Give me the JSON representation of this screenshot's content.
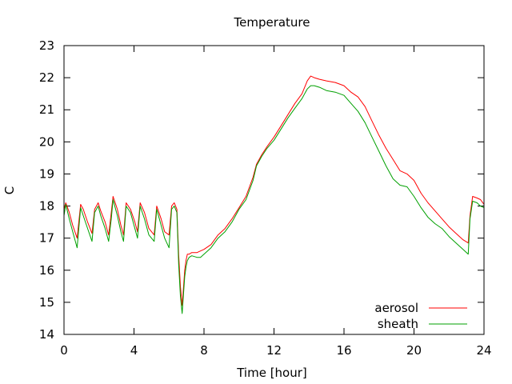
{
  "chart_data": {
    "type": "line",
    "title": "Temperature",
    "xlabel": "Time [hour]",
    "ylabel": "C",
    "xlim": [
      0,
      24
    ],
    "ylim": [
      14,
      23
    ],
    "xticks": [
      0,
      4,
      8,
      12,
      16,
      20,
      24
    ],
    "yticks": [
      14,
      15,
      16,
      17,
      18,
      19,
      20,
      21,
      22,
      23
    ],
    "grid": false,
    "legend_position": "bottom-right",
    "series": [
      {
        "name": "aerosol",
        "color": "#ff0000",
        "x": [
          0,
          0.1,
          0.3,
          0.5,
          0.75,
          0.95,
          1.1,
          1.35,
          1.6,
          1.75,
          1.95,
          2.1,
          2.35,
          2.55,
          2.7,
          2.8,
          3.05,
          3.25,
          3.4,
          3.55,
          3.8,
          4.05,
          4.2,
          4.35,
          4.6,
          4.85,
          5.15,
          5.3,
          5.55,
          5.75,
          6.0,
          6.15,
          6.3,
          6.45,
          6.55,
          6.65,
          6.75,
          6.82,
          6.9,
          6.97,
          7.05,
          7.15,
          7.3,
          7.6,
          7.8,
          8.0,
          8.4,
          8.8,
          9.2,
          9.6,
          10.0,
          10.4,
          10.8,
          11.0,
          11.3,
          11.6,
          12.0,
          12.4,
          12.8,
          13.2,
          13.6,
          13.9,
          14.1,
          14.3,
          14.6,
          15.0,
          15.5,
          16.0,
          16.4,
          16.8,
          17.2,
          17.6,
          18.0,
          18.4,
          18.8,
          19.2,
          19.6,
          20.0,
          20.4,
          20.8,
          21.2,
          21.6,
          22.0,
          22.4,
          22.8,
          23.1,
          23.2,
          23.35,
          23.6,
          23.8,
          24.0
        ],
        "y": [
          17.9,
          18.1,
          17.8,
          17.4,
          17.0,
          18.05,
          17.9,
          17.5,
          17.15,
          17.9,
          18.1,
          17.85,
          17.5,
          17.1,
          17.8,
          18.3,
          17.9,
          17.4,
          17.1,
          18.1,
          17.9,
          17.5,
          17.2,
          18.1,
          17.8,
          17.3,
          17.1,
          18.0,
          17.6,
          17.2,
          17.1,
          18.0,
          18.1,
          17.9,
          16.5,
          15.5,
          14.9,
          15.4,
          16.0,
          16.3,
          16.5,
          16.5,
          16.55,
          16.55,
          16.6,
          16.65,
          16.8,
          17.1,
          17.3,
          17.6,
          17.95,
          18.3,
          18.9,
          19.3,
          19.6,
          19.85,
          20.15,
          20.5,
          20.85,
          21.2,
          21.5,
          21.9,
          22.05,
          22.0,
          21.95,
          21.9,
          21.85,
          21.75,
          21.55,
          21.4,
          21.1,
          20.65,
          20.2,
          19.8,
          19.45,
          19.1,
          19.0,
          18.8,
          18.4,
          18.1,
          17.85,
          17.6,
          17.35,
          17.15,
          16.95,
          16.85,
          17.7,
          18.3,
          18.25,
          18.2,
          18.05
        ]
      },
      {
        "name": "sheath",
        "color": "#00a000",
        "x": [
          0,
          0.1,
          0.3,
          0.5,
          0.75,
          0.95,
          1.1,
          1.35,
          1.6,
          1.75,
          1.95,
          2.1,
          2.35,
          2.55,
          2.7,
          2.8,
          3.05,
          3.25,
          3.4,
          3.55,
          3.8,
          4.05,
          4.2,
          4.35,
          4.6,
          4.85,
          5.15,
          5.3,
          5.55,
          5.75,
          6.0,
          6.15,
          6.3,
          6.45,
          6.55,
          6.65,
          6.75,
          6.82,
          6.9,
          6.97,
          7.05,
          7.15,
          7.3,
          7.6,
          7.8,
          8.0,
          8.4,
          8.8,
          9.2,
          9.6,
          10.0,
          10.4,
          10.8,
          11.0,
          11.3,
          11.6,
          12.0,
          12.4,
          12.8,
          13.2,
          13.6,
          13.9,
          14.1,
          14.3,
          14.6,
          15.0,
          15.5,
          16.0,
          16.4,
          16.8,
          17.2,
          17.6,
          18.0,
          18.4,
          18.8,
          19.2,
          19.6,
          20.0,
          20.4,
          20.8,
          21.2,
          21.6,
          22.0,
          22.4,
          22.8,
          23.1,
          23.2,
          23.35,
          23.6,
          23.8,
          24.0
        ],
        "y": [
          17.7,
          18.05,
          17.6,
          17.2,
          16.7,
          17.95,
          17.7,
          17.3,
          16.9,
          17.8,
          18.0,
          17.7,
          17.3,
          16.9,
          17.6,
          18.2,
          17.7,
          17.2,
          16.9,
          18.0,
          17.8,
          17.3,
          17.0,
          18.0,
          17.6,
          17.1,
          16.9,
          17.9,
          17.4,
          17.0,
          16.7,
          17.9,
          18.0,
          17.8,
          16.2,
          15.2,
          14.65,
          15.2,
          15.8,
          16.1,
          16.3,
          16.4,
          16.45,
          16.4,
          16.4,
          16.5,
          16.7,
          17.0,
          17.2,
          17.5,
          17.9,
          18.2,
          18.8,
          19.25,
          19.55,
          19.8,
          20.05,
          20.4,
          20.75,
          21.05,
          21.35,
          21.65,
          21.75,
          21.75,
          21.7,
          21.6,
          21.55,
          21.45,
          21.2,
          20.95,
          20.6,
          20.15,
          19.7,
          19.25,
          18.85,
          18.65,
          18.6,
          18.3,
          17.95,
          17.65,
          17.45,
          17.3,
          17.05,
          16.85,
          16.65,
          16.5,
          17.6,
          18.15,
          18.1,
          18.0,
          17.95
        ]
      }
    ]
  }
}
